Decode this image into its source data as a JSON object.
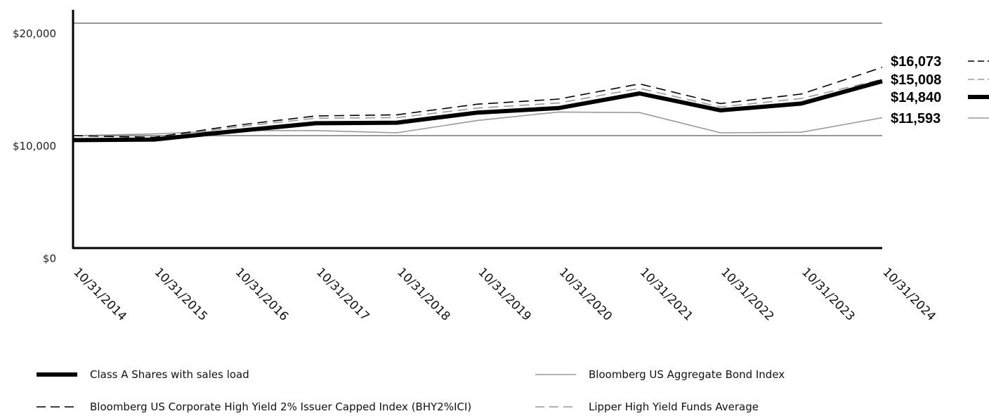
{
  "chart_data": {
    "type": "line",
    "x": [
      "10/31/2014",
      "10/31/2015",
      "10/31/2016",
      "10/31/2017",
      "10/31/2018",
      "10/31/2019",
      "10/31/2020",
      "10/31/2021",
      "10/31/2022",
      "10/31/2023",
      "10/31/2024"
    ],
    "y_ticks": [
      "$0",
      "$10,000",
      "$20,000"
    ],
    "ylim": [
      0,
      22000
    ],
    "grid": "horizontal reference lines",
    "series": [
      {
        "name": "Class A Shares with sales load",
        "style": "thick-solid",
        "color": "#000000",
        "values": [
          9600,
          9650,
          10400,
          11100,
          11150,
          12050,
          12450,
          13750,
          12250,
          12850,
          14840
        ]
      },
      {
        "name": "Bloomberg US Corporate High Yield 2% Issuer Capped Index (BHY2%ICI)",
        "style": "dashed",
        "color": "#000000",
        "values": [
          10000,
          9850,
          10900,
          11750,
          11850,
          12800,
          13250,
          14600,
          12850,
          13700,
          16073
        ]
      },
      {
        "name": "Lipper High Yield Funds Average",
        "style": "dashed",
        "color": "#999999",
        "values": [
          10000,
          9800,
          10750,
          11550,
          11600,
          12450,
          12900,
          14200,
          12550,
          13300,
          15008
        ]
      },
      {
        "name": "Bloomberg US Aggregate Bond Index",
        "style": "thin-solid",
        "color": "#999999",
        "values": [
          10000,
          10150,
          10450,
          10450,
          10250,
          11350,
          12100,
          12050,
          10250,
          10300,
          11593
        ]
      }
    ],
    "end_labels": [
      "$16,073",
      "$15,008",
      "$14,840",
      "$11,593"
    ],
    "legend": {
      "placement": "bottom",
      "columns": 2
    }
  }
}
